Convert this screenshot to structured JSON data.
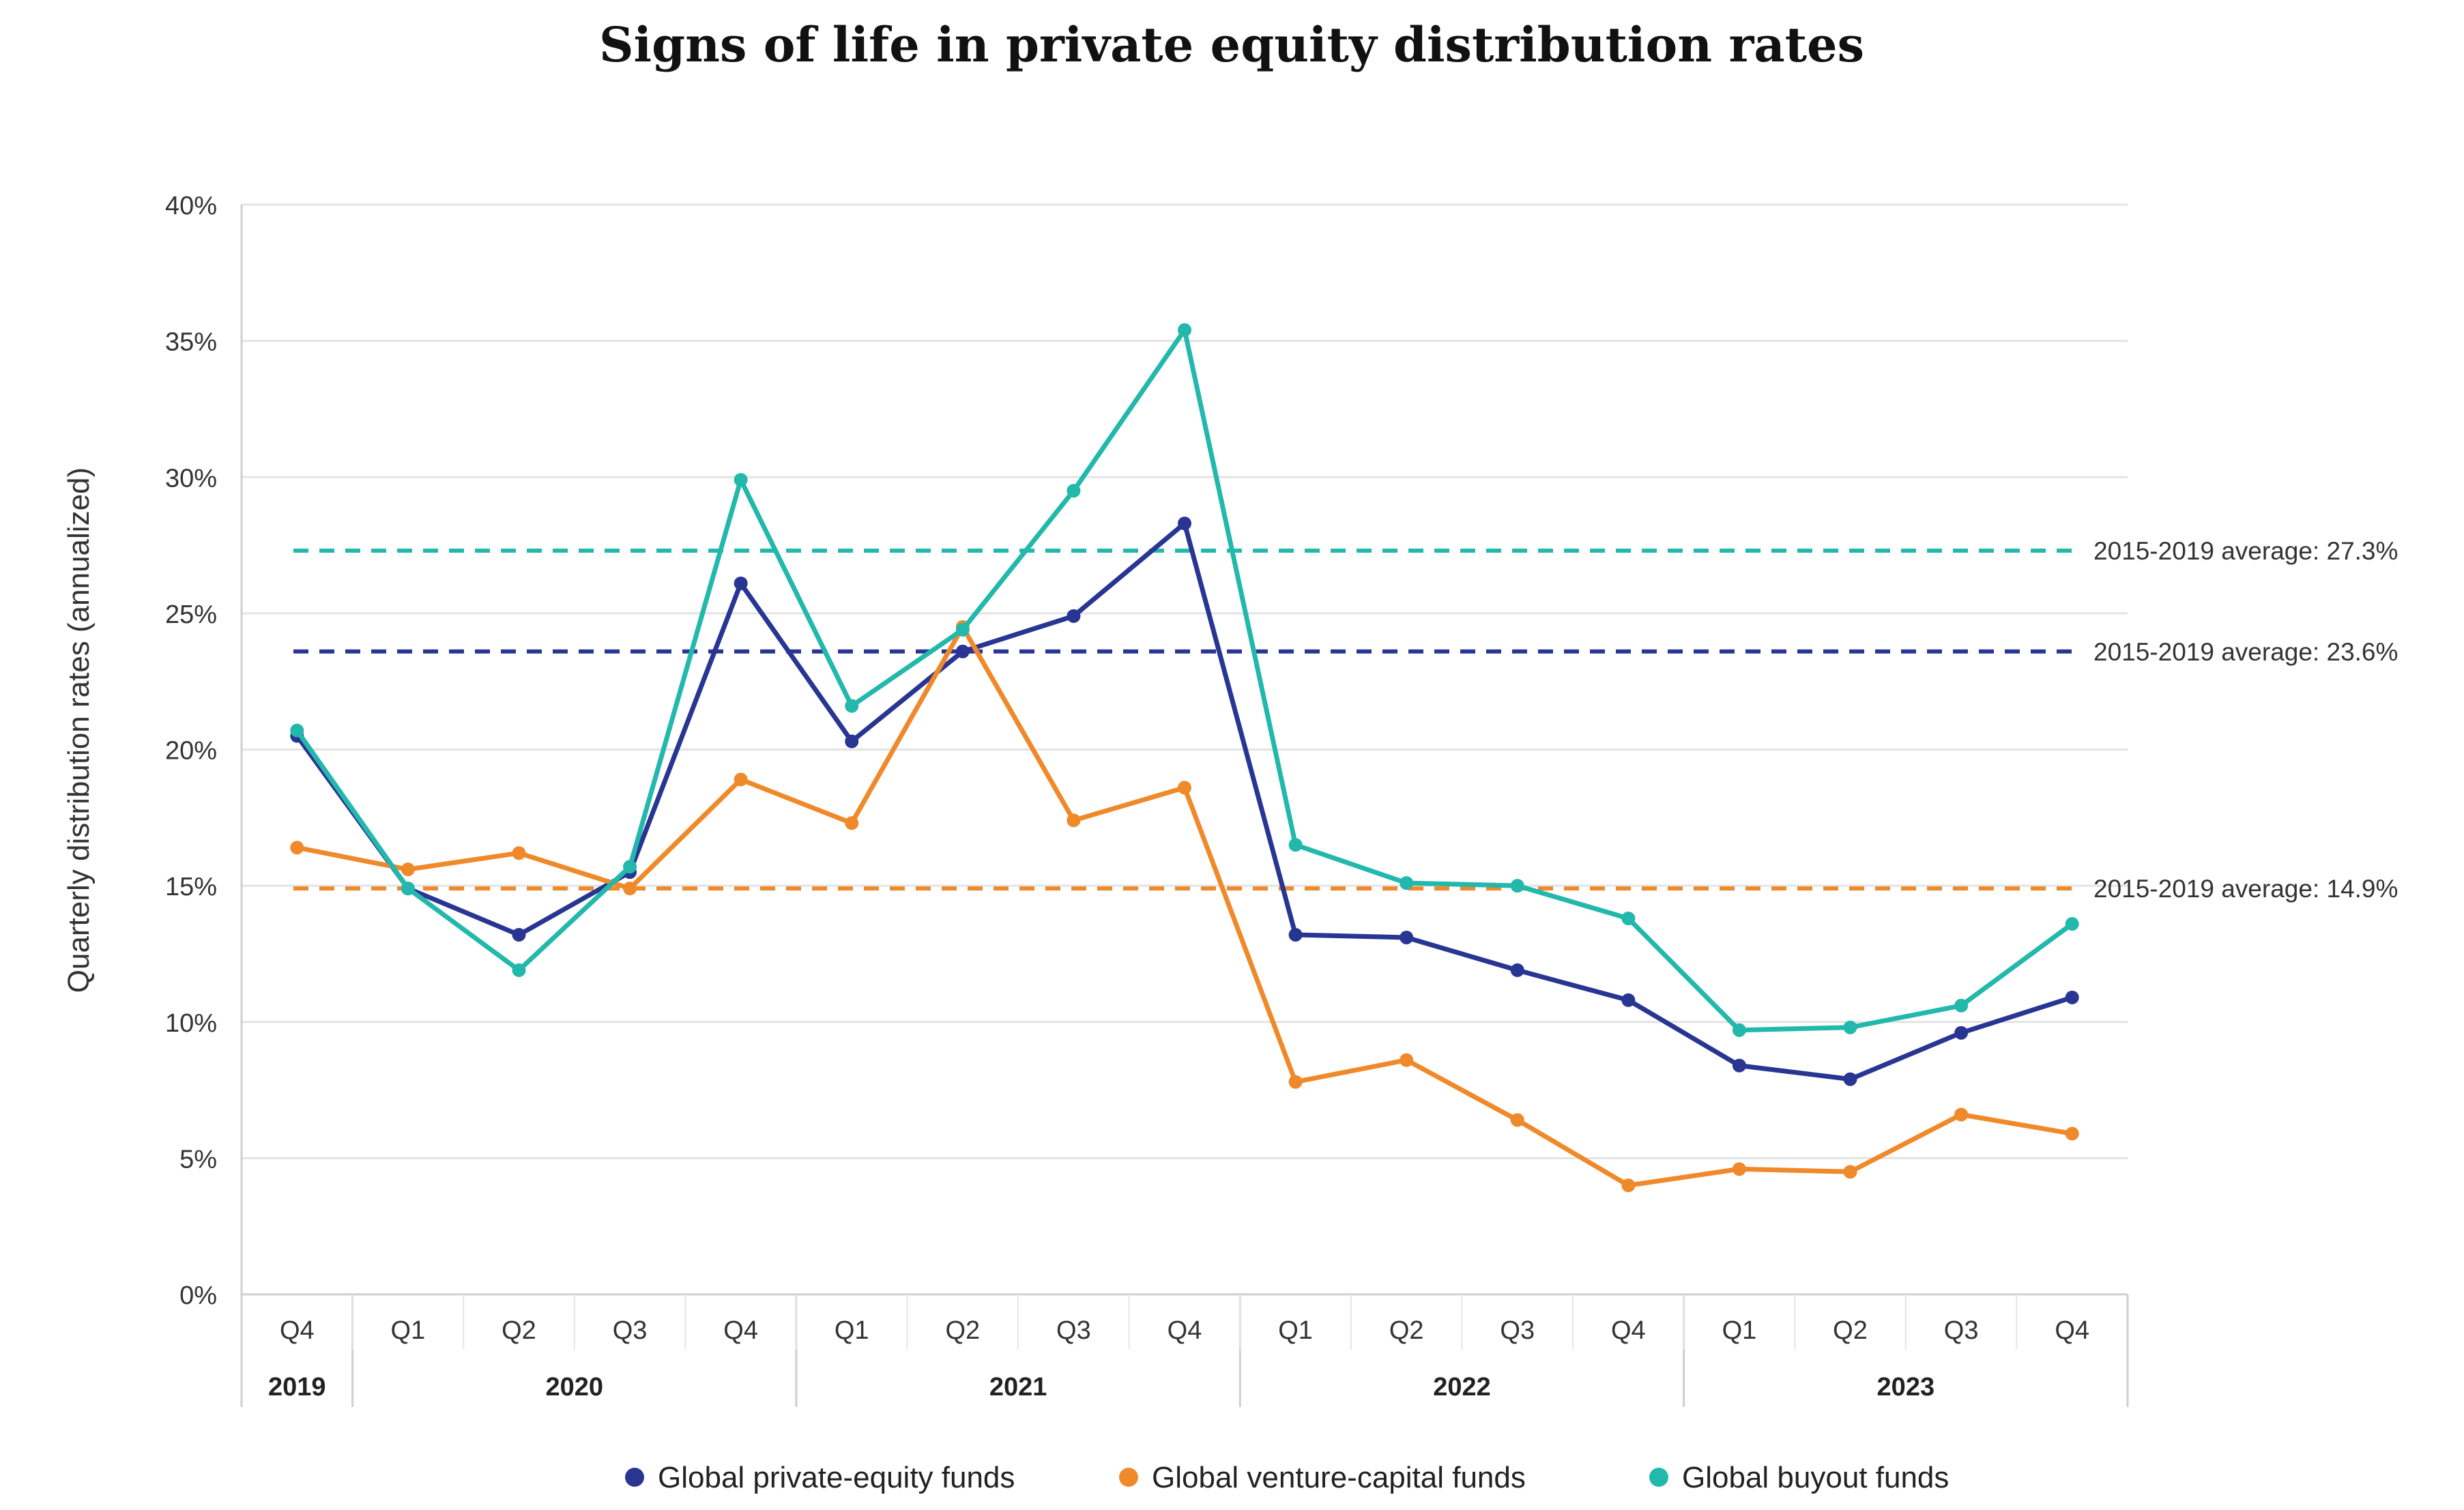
{
  "chart_data": {
    "type": "line",
    "title": "Signs of life in private equity distribution rates",
    "xlabel": "",
    "ylabel": "Quarterly distribution rates (annualized)",
    "ylim": [
      0,
      40
    ],
    "yticks": [
      0,
      5,
      10,
      15,
      20,
      25,
      30,
      35,
      40
    ],
    "ytick_labels": [
      "0%",
      "5%",
      "10%",
      "15%",
      "20%",
      "25%",
      "30%",
      "35%",
      "40%"
    ],
    "grid": true,
    "legend_position": "bottom-center",
    "categories": [
      "Q4",
      "Q1",
      "Q2",
      "Q3",
      "Q4",
      "Q1",
      "Q2",
      "Q3",
      "Q4",
      "Q1",
      "Q2",
      "Q3",
      "Q4",
      "Q1",
      "Q2",
      "Q3",
      "Q4"
    ],
    "year_groups": [
      {
        "label": "2019",
        "start": 0,
        "count": 1
      },
      {
        "label": "2020",
        "start": 1,
        "count": 4
      },
      {
        "label": "2021",
        "start": 5,
        "count": 4
      },
      {
        "label": "2022",
        "start": 9,
        "count": 4
      },
      {
        "label": "2023",
        "start": 13,
        "count": 4
      }
    ],
    "series": [
      {
        "name": "Global private-equity funds",
        "color": "#283593",
        "values": [
          20.5,
          14.9,
          13.2,
          15.5,
          26.1,
          20.3,
          23.6,
          24.9,
          28.3,
          13.2,
          13.1,
          11.9,
          10.8,
          8.4,
          7.9,
          9.6,
          10.9
        ]
      },
      {
        "name": "Global venture-capital funds",
        "color": "#F0892A",
        "values": [
          16.4,
          15.6,
          16.2,
          14.9,
          18.9,
          17.3,
          24.5,
          17.4,
          18.6,
          7.8,
          8.6,
          6.4,
          4.0,
          4.6,
          4.5,
          6.6,
          5.9
        ]
      },
      {
        "name": "Global buyout funds",
        "color": "#22B8AC",
        "values": [
          20.7,
          14.9,
          11.9,
          15.7,
          29.9,
          21.6,
          24.4,
          29.5,
          35.4,
          16.5,
          15.1,
          15.0,
          13.8,
          9.7,
          9.8,
          10.6,
          13.6
        ]
      }
    ],
    "reference_lines": [
      {
        "value": 27.3,
        "label": "2015-2019 average: 27.3%",
        "color": "#22B8AC"
      },
      {
        "value": 23.6,
        "label": "2015-2019 average: 23.6%",
        "color": "#283593"
      },
      {
        "value": 14.9,
        "label": "2015-2019 average: 14.9%",
        "color": "#F0892A"
      }
    ]
  }
}
